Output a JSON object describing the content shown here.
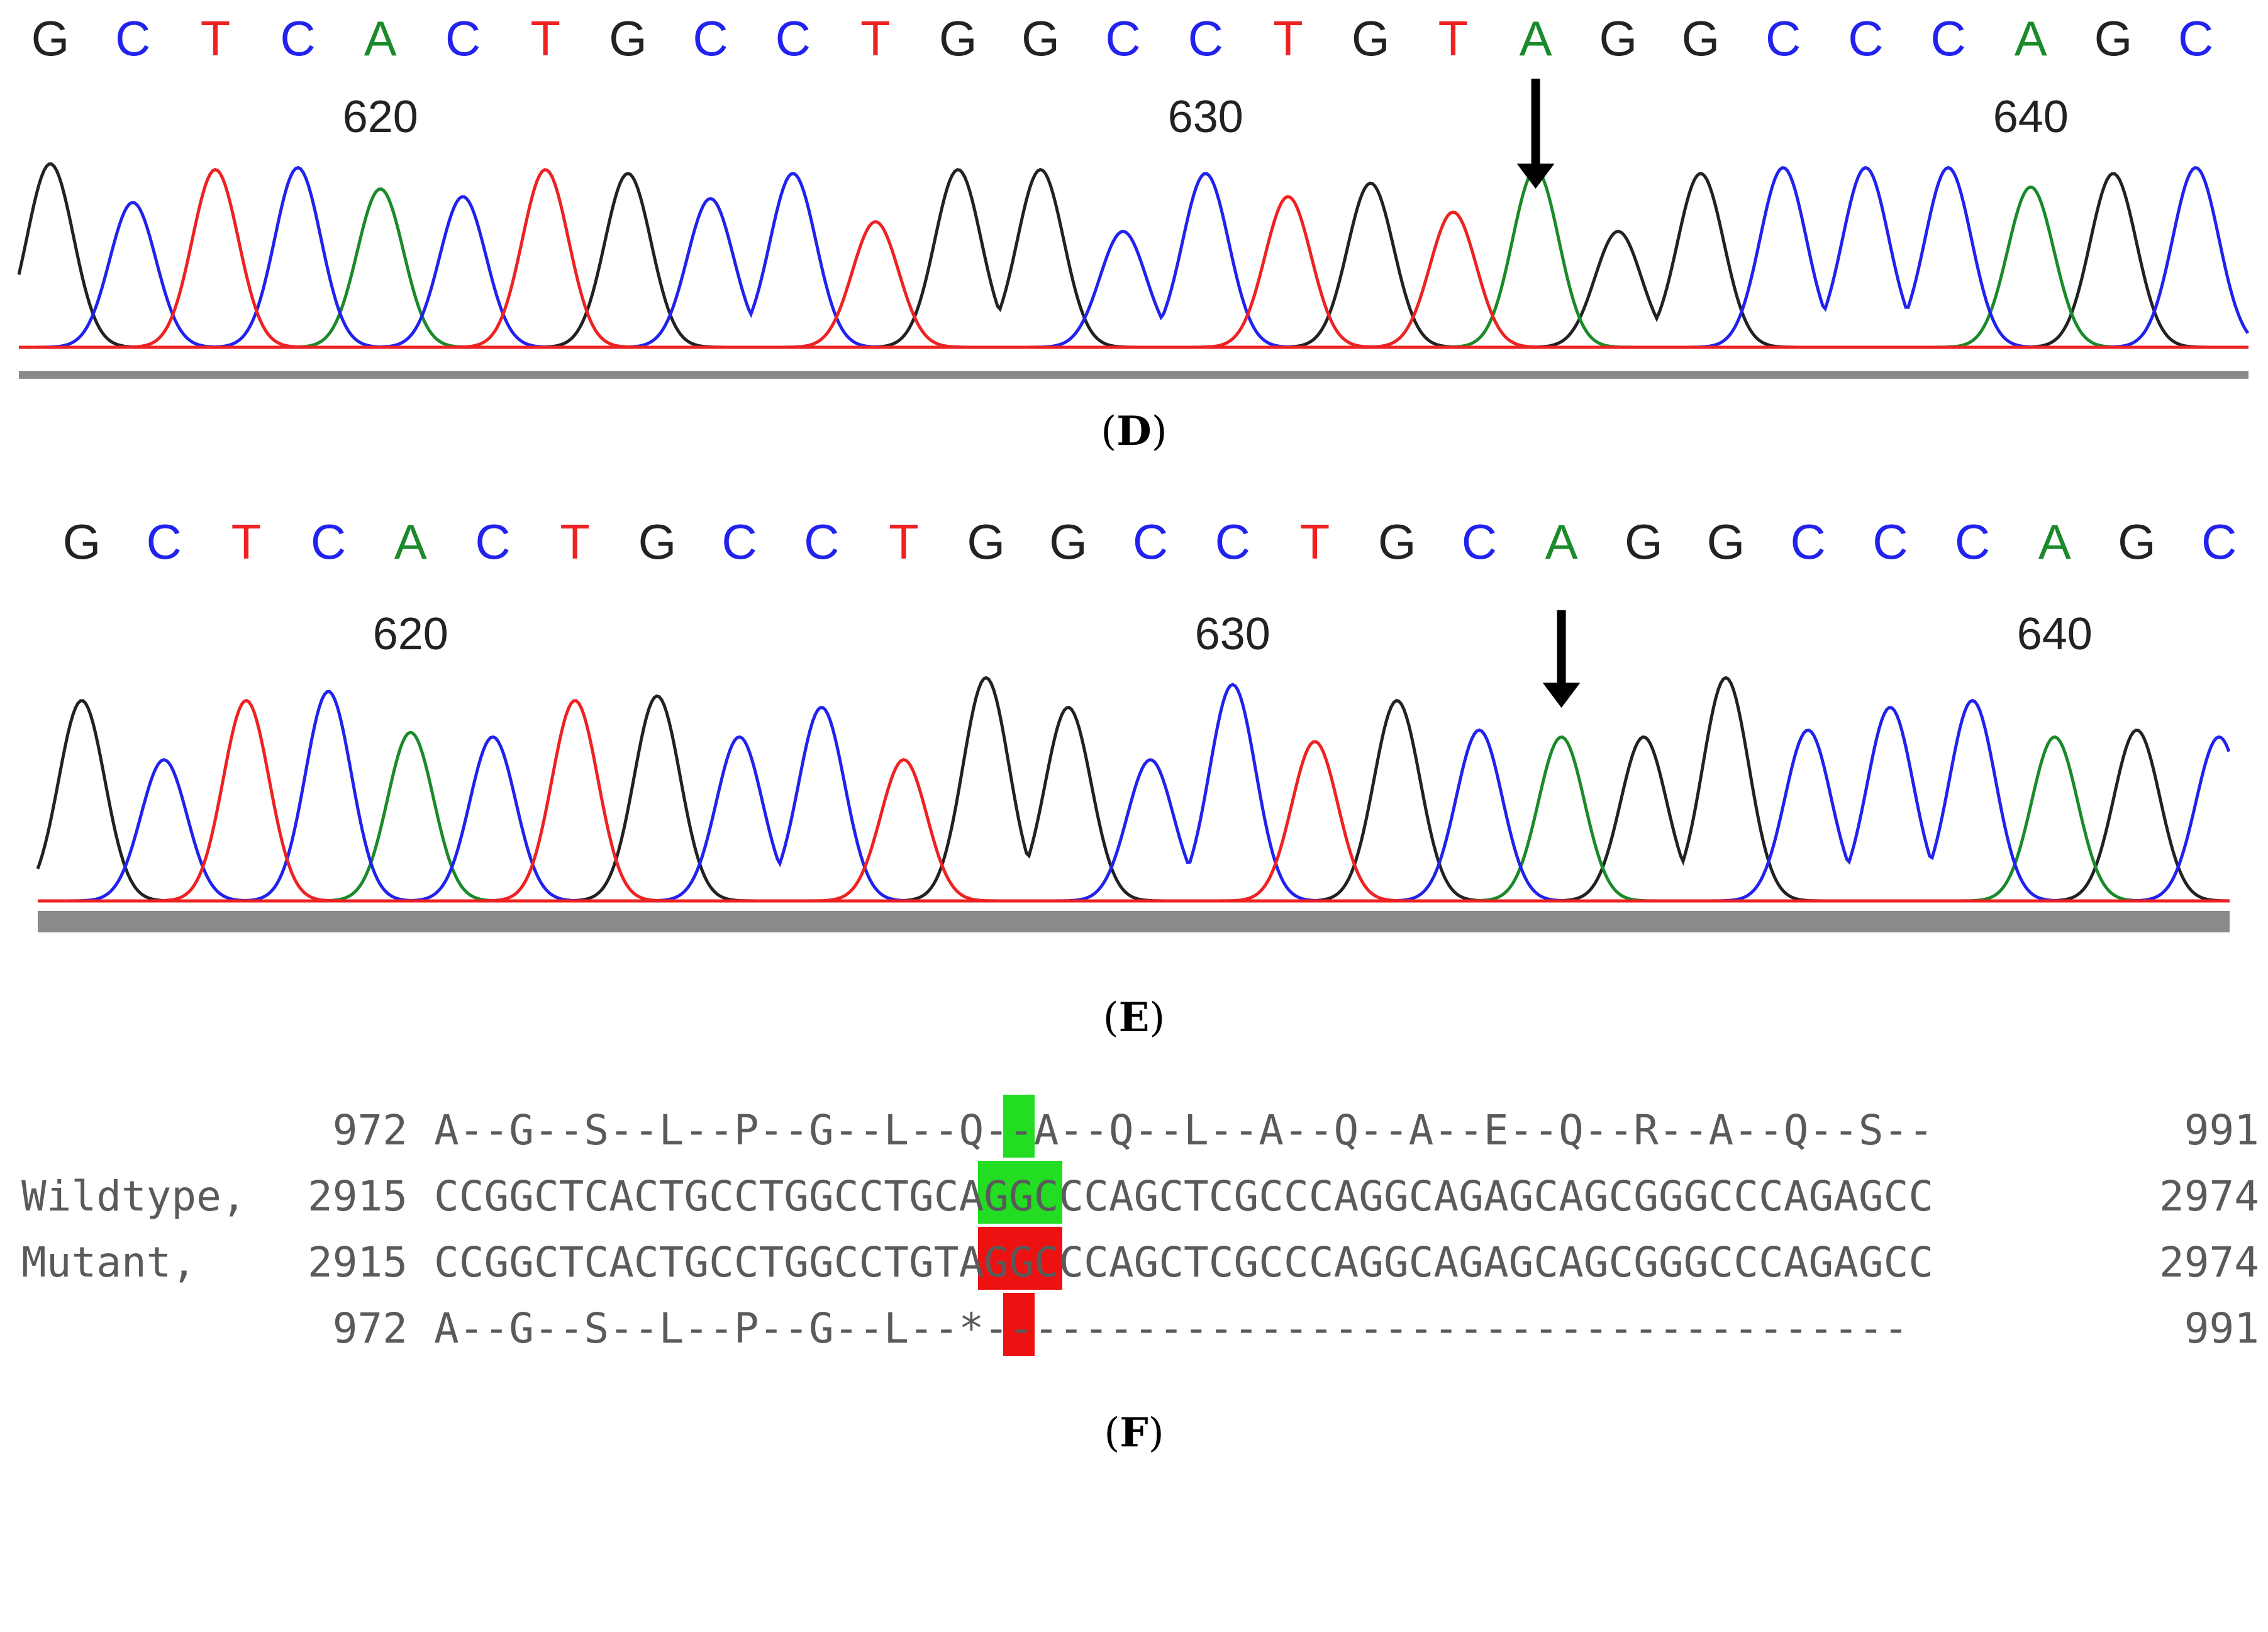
{
  "panels": [
    {
      "id": "D",
      "caption": "D",
      "bases": "GCTCACTGCCTGGCCTGTAGGCCCAGC",
      "base_index_start": 616,
      "position_labels": [
        "620",
        "630",
        "640"
      ],
      "label_positions": [
        620,
        630,
        640
      ],
      "arrow_base_index": 634,
      "trace_color": "#ff0000"
    },
    {
      "id": "E",
      "caption": "E",
      "bases": "GCTCACTGCCTGGCCTGCAGGCCCAGC",
      "base_index_start": 616,
      "position_labels": [
        "620",
        "630",
        "640"
      ],
      "label_positions": [
        620,
        630,
        640
      ],
      "arrow_base_index": 634
    }
  ],
  "base_colors": {
    "A": "#1a8a2a",
    "C": "#2222ee",
    "G": "#222222",
    "T": "#ee2222"
  },
  "alignment": {
    "caption": "F",
    "rows": [
      {
        "label": "",
        "start": "972",
        "seq": "A--G--S--L--P--G--L--Q--A--Q--L--A--Q--A--E--Q--R--A--Q--S--",
        "end": "991"
      },
      {
        "label": "Wildtype,",
        "start": "2915",
        "seq": "CCGGCTCACTGCCTGGCCTGCAGGCCCAGCTCGCCCAGGCAGAGCAGCGGGCCCAGAGCC",
        "end": "2974"
      },
      {
        "label": "Mutant,",
        "start": "2915",
        "seq": "CCGGCTCACTGCCTGGCCTGTAGGCCCAGCTCGCCCAGGCAGAGCAGCGGGCCCAGAGCC",
        "end": "2974"
      },
      {
        "label": "",
        "start": "972",
        "seq": "A--G--S--L--P--G--L--*-------------------------------------",
        "end": "991"
      }
    ],
    "highlight_green": "#22dd22",
    "highlight_red": "#ee1111"
  }
}
